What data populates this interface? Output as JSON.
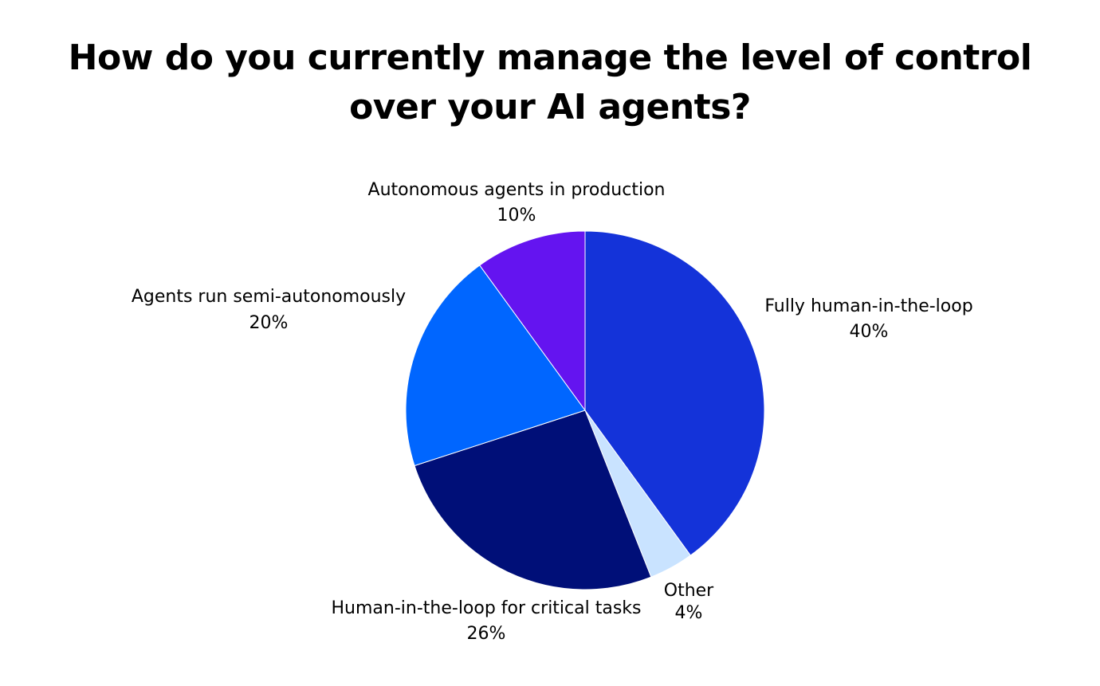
{
  "chart_data": {
    "type": "pie",
    "title": "How do you currently manage the level of control over your AI agents?",
    "slices": [
      {
        "label": "Fully human-in-the-loop",
        "value": 40,
        "display": "40%",
        "color": "#1433D9"
      },
      {
        "label": "Other",
        "value": 4,
        "display": "4%",
        "color": "#C9E3FF"
      },
      {
        "label": "Human-in-the-loop for critical tasks",
        "value": 26,
        "display": "26%",
        "color": "#000F78"
      },
      {
        "label": "Agents run semi-autonomously",
        "value": 20,
        "display": "20%",
        "color": "#0066FF"
      },
      {
        "label": "Autonomous agents in production",
        "value": 10,
        "display": "10%",
        "color": "#6414F0"
      }
    ],
    "start_angle": "12 o'clock",
    "direction": "clockwise",
    "legend": "none"
  }
}
